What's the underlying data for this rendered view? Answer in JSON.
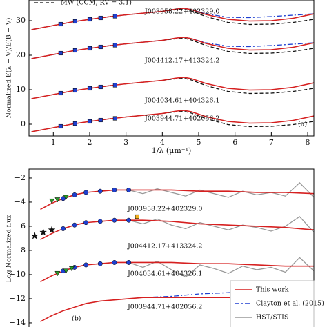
{
  "chart_data": [
    {
      "type": "line",
      "x_label": "1/λ (μm⁻¹)",
      "y_label": "Normalized E(λ − V)/E(B − V)",
      "legend_name": "MW (CCM, RV = 3.1)",
      "annotations": [
        "J003958.22+402329.0",
        "J004412.17+413324.2",
        "J004034.61+404326.1",
        "J003944.71+402056.2",
        "(a)"
      ],
      "xlim": [
        0.33,
        8.17
      ],
      "xticks": [
        1,
        2,
        3,
        4,
        5,
        6,
        7,
        8
      ],
      "ylim": [
        -3.4,
        36
      ],
      "yticks": [
        0,
        10,
        20,
        30
      ],
      "x": [
        0.4,
        1,
        1.5,
        2,
        2.5,
        3,
        3.5,
        4,
        4.4,
        4.6,
        4.8,
        5.2,
        5.8,
        6.4,
        7,
        7.6,
        8.17
      ],
      "series": [
        {
          "color": "#1f3fd0",
          "dash": "7 3 2 3",
          "values": [
            27.4,
            28.6,
            29.6,
            30.4,
            31.1,
            31.7,
            32.2,
            32.7,
            33.4,
            33.6,
            33.2,
            32,
            31,
            30.9,
            31.2,
            31.6,
            32
          ]
        },
        {
          "color": "#111111",
          "dash": "5 3",
          "name": "MW (CCM, RV = 3.1)",
          "values": [
            27.4,
            28.6,
            29.6,
            30.4,
            31.1,
            31.7,
            32.2,
            32.7,
            33.2,
            33.3,
            32.8,
            31.2,
            29.5,
            28.9,
            29,
            29.5,
            30.4
          ]
        },
        {
          "color": "#d62020",
          "values": [
            27.4,
            28.6,
            29.6,
            30.4,
            31.1,
            31.7,
            32.2,
            32.7,
            33.4,
            33.6,
            33.2,
            31.8,
            30.4,
            29.9,
            30,
            30.7,
            32
          ]
        },
        {
          "color": "#1f3fd0",
          "dash": "7 3 2 3",
          "values": [
            19,
            20.2,
            21.2,
            22,
            22.7,
            23.3,
            23.8,
            24.3,
            25,
            25.2,
            24.8,
            23.6,
            22.6,
            22.5,
            22.8,
            23.2,
            23.6
          ]
        },
        {
          "color": "#111111",
          "dash": "5 3",
          "values": [
            19,
            20.2,
            21.2,
            22,
            22.7,
            23.3,
            23.8,
            24.3,
            24.8,
            24.9,
            24.4,
            22.8,
            21.1,
            20.5,
            20.6,
            21.1,
            22
          ]
        },
        {
          "color": "#d62020",
          "values": [
            19,
            20.2,
            21.2,
            22,
            22.7,
            23.3,
            23.8,
            24.3,
            25,
            25.2,
            24.8,
            23.4,
            22,
            21.5,
            21.6,
            22.3,
            23.6
          ]
        },
        {
          "color": "#111111",
          "dash": "5 3",
          "values": [
            7.4,
            8.6,
            9.6,
            10.4,
            11.1,
            11.7,
            12.2,
            12.7,
            13.2,
            13.3,
            12.8,
            11.2,
            9.5,
            8.9,
            9,
            9.5,
            10.4
          ]
        },
        {
          "color": "#d62020",
          "values": [
            7.4,
            8.6,
            9.6,
            10.4,
            11.1,
            11.7,
            12.2,
            12.7,
            13.4,
            13.6,
            13.2,
            11.8,
            10.4,
            9.9,
            10,
            10.7,
            12
          ]
        },
        {
          "color": "#111111",
          "dash": "5 3",
          "values": [
            -2.2,
            -1,
            0,
            0.8,
            1.5,
            2.1,
            2.6,
            3.1,
            3.6,
            3.7,
            3.2,
            1.6,
            -0.1,
            -0.7,
            -0.6,
            -0.1,
            0.8
          ]
        },
        {
          "color": "#d62020",
          "values": [
            -2.2,
            -1,
            0,
            0.8,
            1.5,
            2.1,
            2.6,
            3.1,
            3.8,
            4,
            3.6,
            2.2,
            0.8,
            0.3,
            0.4,
            1.1,
            2.4
          ]
        },
        {
          "color": "#1f3fd0",
          "marker": "square",
          "x": [
            1.2,
            1.6,
            2.0,
            2.3,
            2.7
          ],
          "values": [
            29,
            29.8,
            30.4,
            30.8,
            31.3
          ]
        },
        {
          "color": "#1f3fd0",
          "marker": "square",
          "x": [
            1.2,
            1.6,
            2.0,
            2.3,
            2.7
          ],
          "values": [
            20.6,
            21.4,
            22,
            22.4,
            22.9
          ]
        },
        {
          "color": "#1f3fd0",
          "marker": "square",
          "x": [
            1.2,
            1.6,
            2.0,
            2.3,
            2.7
          ],
          "values": [
            9,
            9.8,
            10.4,
            10.8,
            11.3
          ]
        },
        {
          "color": "#1f3fd0",
          "marker": "square",
          "x": [
            1.2,
            1.6,
            2.0,
            2.3,
            2.7
          ],
          "values": [
            -0.6,
            0.2,
            0.8,
            1.2,
            1.7
          ]
        }
      ]
    },
    {
      "type": "line",
      "y_label": "Log Normalized flux",
      "annotations": [
        "J003958.22+402329.0",
        "J004412.17+413324.2",
        "J004034.61+404326.1",
        "J003944.71+402056.2",
        "(b)"
      ],
      "xlim": [
        0,
        1
      ],
      "ylim": [
        -14.46,
        -1.26
      ],
      "yticks": [
        {
          "value": -2,
          "label": "−2"
        },
        {
          "value": -4,
          "label": "−4"
        },
        {
          "value": -6,
          "label": "−6"
        },
        {
          "value": -8,
          "label": "−8"
        },
        {
          "value": -10,
          "label": "−10"
        },
        {
          "value": -12,
          "label": "−12"
        },
        {
          "value": -14,
          "label": "−14"
        }
      ],
      "x": [
        0.04,
        0.08,
        0.12,
        0.16,
        0.2,
        0.25,
        0.3,
        0.35,
        0.4,
        0.5,
        0.6,
        0.7,
        0.8,
        0.9,
        1.0
      ],
      "series": [
        {
          "name": "HST/STIS",
          "color": "#999999",
          "x": [
            0.35,
            0.4,
            0.45,
            0.5,
            0.55,
            0.6,
            0.65,
            0.7,
            0.75,
            0.8,
            0.85,
            0.9,
            0.95,
            1.0
          ],
          "values": [
            -3.0,
            -3.3,
            -2.9,
            -3.2,
            -3.5,
            -3.0,
            -3.3,
            -3.6,
            -3.1,
            -3.4,
            -3.2,
            -3.5,
            -2.4,
            -3.6
          ]
        },
        {
          "color": "#999999",
          "x": [
            0.35,
            0.4,
            0.45,
            0.5,
            0.55,
            0.6,
            0.65,
            0.7,
            0.75,
            0.8,
            0.85,
            0.9,
            0.95,
            1.0
          ],
          "values": [
            -5.5,
            -5.8,
            -5.4,
            -5.9,
            -6.2,
            -5.7,
            -6.0,
            -6.3,
            -5.9,
            -6.1,
            -6.4,
            -6.0,
            -5.2,
            -6.5
          ]
        },
        {
          "color": "#999999",
          "x": [
            0.35,
            0.4,
            0.45,
            0.5,
            0.55,
            0.6,
            0.65,
            0.7,
            0.75,
            0.8,
            0.85,
            0.9,
            0.95,
            1.0
          ],
          "values": [
            -9.0,
            -9.4,
            -8.9,
            -9.6,
            -10.2,
            -9.2,
            -9.5,
            -9.9,
            -9.3,
            -9.6,
            -9.4,
            -9.8,
            -8.6,
            -9.7
          ]
        },
        {
          "name": "Clayton et al. (2015)",
          "color": "#1f3fd0",
          "dash": "7 3 2 3",
          "x": [
            0.4,
            0.5,
            0.6,
            0.7,
            0.8,
            0.9,
            1.0
          ],
          "values": [
            -11.9,
            -11.8,
            -11.6,
            -11.5,
            -11.4,
            -11.4,
            -11.3
          ]
        },
        {
          "name": "This work",
          "color": "#d62020",
          "values": [
            -4.6,
            -4.1,
            -3.7,
            -3.4,
            -3.2,
            -3.1,
            -3.0,
            -3.0,
            -3.0,
            -3.0,
            -3.1,
            -3.1,
            -3.2,
            -3.2,
            -3.3
          ]
        },
        {
          "color": "#d62020",
          "values": [
            -7.1,
            -6.6,
            -6.2,
            -5.9,
            -5.7,
            -5.6,
            -5.5,
            -5.5,
            -5.5,
            -5.6,
            -5.8,
            -5.9,
            -6.0,
            -6.1,
            -6.3
          ]
        },
        {
          "color": "#d62020",
          "values": [
            -10.6,
            -10.1,
            -9.7,
            -9.4,
            -9.2,
            -9.1,
            -9.0,
            -9.0,
            -9.0,
            -9.0,
            -9.1,
            -9.1,
            -9.2,
            -9.3,
            -9.3
          ]
        },
        {
          "color": "#d62020",
          "values": [
            -13.9,
            -13.4,
            -13.0,
            -12.7,
            -12.4,
            -12.2,
            -12.1,
            -12.0,
            -11.9,
            -11.9,
            -11.9,
            -11.9,
            -11.9,
            -11.8,
            -11.8
          ]
        },
        {
          "color": "#1f3fd0",
          "marker": "circle",
          "x": [
            0.12,
            0.16,
            0.2,
            0.25,
            0.3,
            0.35
          ],
          "values": [
            -3.7,
            -3.4,
            -3.2,
            -3.1,
            -3.0,
            -3.0
          ]
        },
        {
          "color": "#1f3fd0",
          "marker": "circle",
          "x": [
            0.12,
            0.16,
            0.2,
            0.25,
            0.3,
            0.35
          ],
          "values": [
            -6.2,
            -5.9,
            -5.7,
            -5.6,
            -5.5,
            -5.5
          ]
        },
        {
          "color": "#1f3fd0",
          "marker": "circle",
          "x": [
            0.12,
            0.16,
            0.2,
            0.25,
            0.3,
            0.35
          ],
          "values": [
            -9.7,
            -9.4,
            -9.2,
            -9.1,
            -9.0,
            -9.0
          ]
        },
        {
          "color": "#2a9a2a",
          "marker": "triangle",
          "x": [
            0.08,
            0.1,
            0.13
          ],
          "values": [
            -3.9,
            -3.8,
            -3.6
          ]
        },
        {
          "color": "#2a9a2a",
          "marker": "triangle",
          "x": [
            0.1,
            0.13,
            0.15
          ],
          "values": [
            -9.9,
            -9.7,
            -9.5
          ]
        },
        {
          "color": "#111111",
          "marker": "star",
          "x": [
            0.02,
            0.05,
            0.08
          ],
          "values": [
            -6.8,
            -6.5,
            -6.3
          ]
        },
        {
          "color": "#f0b020",
          "marker": "square",
          "x": [
            0.38
          ],
          "values": [
            -5.2
          ]
        }
      ]
    }
  ]
}
